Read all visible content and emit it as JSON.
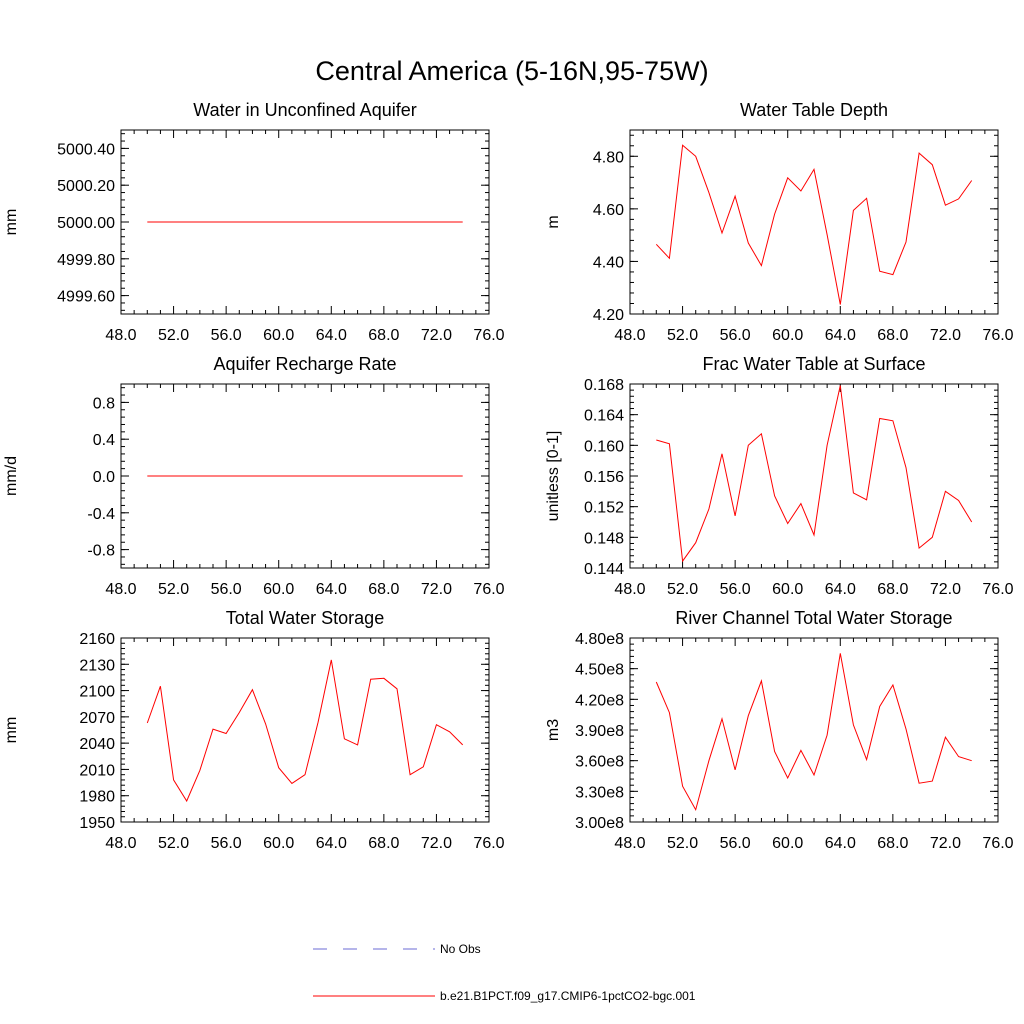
{
  "title": "Central America (5-16N,95-75W)",
  "legend": {
    "items": [
      {
        "label": "No Obs",
        "color": "#6b6bd6",
        "dash": true
      },
      {
        "label": "b.e21.B1PCT.f09_g17.CMIP6-1pctCO2-bgc.001",
        "color": "#ff0000",
        "dash": false
      }
    ]
  },
  "chart_data": [
    {
      "type": "line",
      "title": "Water in Unconfined Aquifer",
      "ylabel": "mm",
      "xlim": [
        48,
        76
      ],
      "ylim": [
        4999.5,
        5000.5
      ],
      "xticks": [
        48,
        52,
        56,
        60,
        64,
        68,
        72,
        76
      ],
      "xtick_labels": [
        "48.0",
        "52.0",
        "56.0",
        "60.0",
        "64.0",
        "68.0",
        "72.0",
        "76.0"
      ],
      "yticks": [
        4999.6,
        4999.8,
        5000.0,
        5000.2,
        5000.4
      ],
      "ytick_labels": [
        "4999.60",
        "4999.80",
        "5000.00",
        "5000.20",
        "5000.40"
      ],
      "x": [
        50,
        51,
        52,
        53,
        54,
        55,
        56,
        57,
        58,
        59,
        60,
        61,
        62,
        63,
        64,
        65,
        66,
        67,
        68,
        69,
        70,
        71,
        72,
        73,
        74
      ],
      "series": [
        {
          "values": [
            5000,
            5000,
            5000,
            5000,
            5000,
            5000,
            5000,
            5000,
            5000,
            5000,
            5000,
            5000,
            5000,
            5000,
            5000,
            5000,
            5000,
            5000,
            5000,
            5000,
            5000,
            5000,
            5000,
            5000,
            5000
          ]
        }
      ]
    },
    {
      "type": "line",
      "title": "Water Table Depth",
      "ylabel": "m",
      "xlim": [
        48,
        76
      ],
      "ylim": [
        4.2,
        4.9
      ],
      "xticks": [
        48,
        52,
        56,
        60,
        64,
        68,
        72,
        76
      ],
      "xtick_labels": [
        "48.0",
        "52.0",
        "56.0",
        "60.0",
        "64.0",
        "68.0",
        "72.0",
        "76.0"
      ],
      "yticks": [
        4.2,
        4.4,
        4.6,
        4.8
      ],
      "ytick_labels": [
        "4.20",
        "4.40",
        "4.60",
        "4.80"
      ],
      "x": [
        50,
        51,
        52,
        53,
        54,
        55,
        56,
        57,
        58,
        59,
        60,
        61,
        62,
        63,
        64,
        65,
        66,
        67,
        68,
        69,
        70,
        71,
        72,
        73,
        74
      ],
      "series": [
        {
          "values": [
            4.465,
            4.412,
            4.842,
            4.8,
            4.662,
            4.508,
            4.648,
            4.47,
            4.384,
            4.58,
            4.718,
            4.668,
            4.75,
            4.502,
            4.236,
            4.594,
            4.64,
            4.363,
            4.35,
            4.474,
            4.812,
            4.768,
            4.614,
            4.638,
            4.708
          ]
        }
      ]
    },
    {
      "type": "line",
      "title": "Aquifer Recharge Rate",
      "ylabel": "mm/d",
      "xlim": [
        48,
        76
      ],
      "ylim": [
        -1.0,
        1.0
      ],
      "xticks": [
        48,
        52,
        56,
        60,
        64,
        68,
        72,
        76
      ],
      "xtick_labels": [
        "48.0",
        "52.0",
        "56.0",
        "60.0",
        "64.0",
        "68.0",
        "72.0",
        "76.0"
      ],
      "yticks": [
        -0.8,
        -0.4,
        0.0,
        0.4,
        0.8
      ],
      "ytick_labels": [
        "-0.8",
        "-0.4",
        "0.0",
        "0.4",
        "0.8"
      ],
      "x": [
        50,
        51,
        52,
        53,
        54,
        55,
        56,
        57,
        58,
        59,
        60,
        61,
        62,
        63,
        64,
        65,
        66,
        67,
        68,
        69,
        70,
        71,
        72,
        73,
        74
      ],
      "series": [
        {
          "values": [
            0,
            0,
            0,
            0,
            0,
            0,
            0,
            0,
            0,
            0,
            0,
            0,
            0,
            0,
            0,
            0,
            0,
            0,
            0,
            0,
            0,
            0,
            0,
            0,
            0
          ]
        }
      ]
    },
    {
      "type": "line",
      "title": "Frac Water Table at Surface",
      "ylabel": "unitless [0-1]",
      "xlim": [
        48,
        76
      ],
      "ylim": [
        0.144,
        0.168
      ],
      "xticks": [
        48,
        52,
        56,
        60,
        64,
        68,
        72,
        76
      ],
      "xtick_labels": [
        "48.0",
        "52.0",
        "56.0",
        "60.0",
        "64.0",
        "68.0",
        "72.0",
        "76.0"
      ],
      "yticks": [
        0.144,
        0.148,
        0.152,
        0.156,
        0.16,
        0.164,
        0.168
      ],
      "ytick_labels": [
        "0.144",
        "0.148",
        "0.152",
        "0.156",
        "0.160",
        "0.164",
        "0.168"
      ],
      "x": [
        50,
        51,
        52,
        53,
        54,
        55,
        56,
        57,
        58,
        59,
        60,
        61,
        62,
        63,
        64,
        65,
        66,
        67,
        68,
        69,
        70,
        71,
        72,
        73,
        74
      ],
      "series": [
        {
          "values": [
            0.1607,
            0.1602,
            0.1449,
            0.1473,
            0.1517,
            0.1589,
            0.1508,
            0.16,
            0.1615,
            0.1534,
            0.1498,
            0.1524,
            0.1483,
            0.16,
            0.1678,
            0.1538,
            0.1529,
            0.1635,
            0.1632,
            0.1571,
            0.1466,
            0.148,
            0.154,
            0.1528,
            0.15
          ]
        }
      ]
    },
    {
      "type": "line",
      "title": "Total Water Storage",
      "ylabel": "mm",
      "xlim": [
        48,
        76
      ],
      "ylim": [
        1950,
        2160
      ],
      "xticks": [
        48,
        52,
        56,
        60,
        64,
        68,
        72,
        76
      ],
      "xtick_labels": [
        "48.0",
        "52.0",
        "56.0",
        "60.0",
        "64.0",
        "68.0",
        "72.0",
        "76.0"
      ],
      "yticks": [
        1950,
        1980,
        2010,
        2040,
        2070,
        2100,
        2130,
        2160
      ],
      "ytick_labels": [
        "1950",
        "1980",
        "2010",
        "2040",
        "2070",
        "2100",
        "2130",
        "2160"
      ],
      "x": [
        50,
        51,
        52,
        53,
        54,
        55,
        56,
        57,
        58,
        59,
        60,
        61,
        62,
        63,
        64,
        65,
        66,
        67,
        68,
        69,
        70,
        71,
        72,
        73,
        74
      ],
      "series": [
        {
          "values": [
            2063,
            2105,
            1998,
            1974,
            2009,
            2056,
            2051,
            2075,
            2101,
            2062,
            2012,
            1994,
            2004,
            2064,
            2135,
            2045,
            2038,
            2113,
            2114,
            2102,
            2004,
            2013,
            2061,
            2053,
            2038
          ]
        }
      ]
    },
    {
      "type": "line",
      "title": "River Channel Total Water Storage",
      "ylabel": "m3",
      "xlim": [
        48,
        76
      ],
      "ylim": [
        300000000.0,
        480000000.0
      ],
      "xticks": [
        48,
        52,
        56,
        60,
        64,
        68,
        72,
        76
      ],
      "xtick_labels": [
        "48.0",
        "52.0",
        "56.0",
        "60.0",
        "64.0",
        "68.0",
        "72.0",
        "76.0"
      ],
      "yticks": [
        300000000.0,
        330000000.0,
        360000000.0,
        390000000.0,
        420000000.0,
        450000000.0,
        480000000.0
      ],
      "ytick_labels": [
        "3.00e8",
        "3.30e8",
        "3.60e8",
        "3.90e8",
        "4.20e8",
        "4.50e8",
        "4.80e8"
      ],
      "x": [
        50,
        51,
        52,
        53,
        54,
        55,
        56,
        57,
        58,
        59,
        60,
        61,
        62,
        63,
        64,
        65,
        66,
        67,
        68,
        69,
        70,
        71,
        72,
        73,
        74
      ],
      "series": [
        {
          "values": [
            437000000.0,
            407000000.0,
            335000000.0,
            312000000.0,
            360000000.0,
            401000000.0,
            351000000.0,
            404000000.0,
            438000000.0,
            369000000.0,
            343000000.0,
            370000000.0,
            346000000.0,
            385000000.0,
            465000000.0,
            395000000.0,
            361000000.0,
            413000000.0,
            434000000.0,
            391000000.0,
            338000000.0,
            340000000.0,
            383000000.0,
            364000000.0,
            360000000.0
          ]
        }
      ]
    }
  ]
}
